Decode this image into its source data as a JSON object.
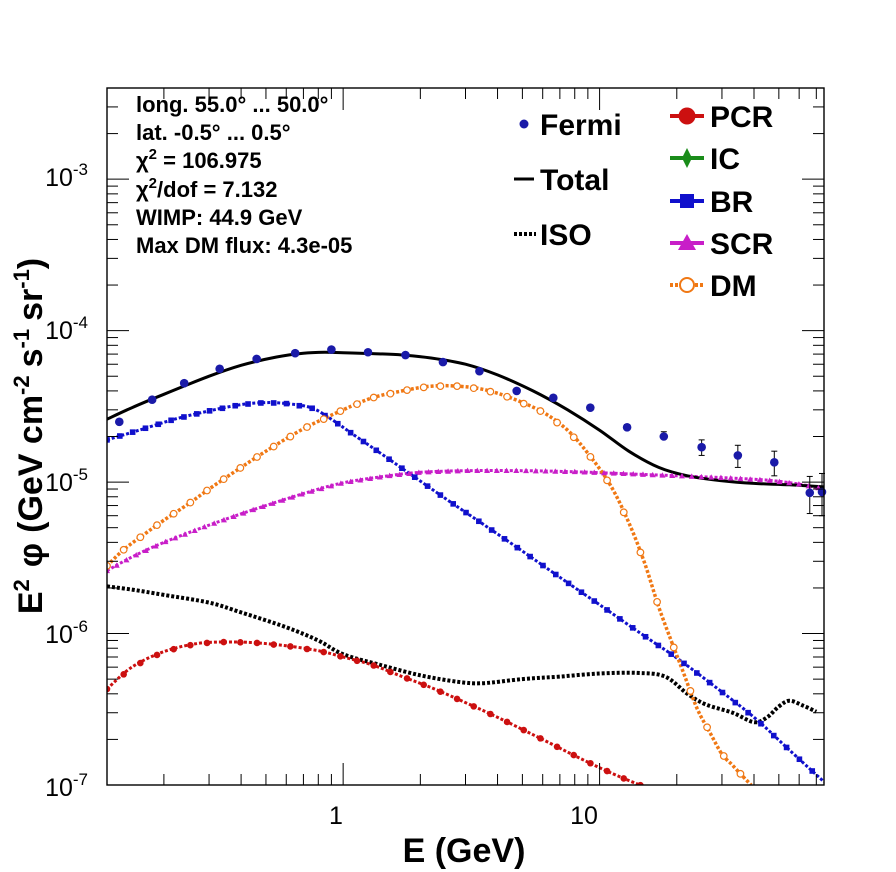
{
  "chart_data": {
    "type": "scatter",
    "title": "",
    "xlabel": "E (GeV)",
    "ylabel_parts": {
      "E": "E",
      "exp2": "2",
      "phi": "φ",
      "unit_open": "(GeV cm",
      "exp_cm": "-2",
      "s": "s",
      "exp_s": "-1",
      "sr": "sr",
      "exp_sr": "-1",
      "close": ")"
    },
    "x_scale": "log",
    "y_scale": "log",
    "xlim": [
      0.12,
      75
    ],
    "ylim": [
      1e-07,
      0.004
    ],
    "x_ticks": [
      {
        "value": 1,
        "label": "1"
      },
      {
        "value": 10,
        "label": "10"
      }
    ],
    "y_ticks": [
      {
        "value": 1e-07,
        "base": "10",
        "exp": "-7"
      },
      {
        "value": 1e-06,
        "base": "10",
        "exp": "-6"
      },
      {
        "value": 1e-05,
        "base": "10",
        "exp": "-5"
      },
      {
        "value": 0.0001,
        "base": "10",
        "exp": "-4"
      },
      {
        "value": 0.001,
        "base": "10",
        "exp": "-3"
      }
    ],
    "info": {
      "long": "long. 55.0° ... 50.0°",
      "lat": "lat. -0.5° ... 0.5°",
      "chi2_prefix": "χ",
      "chi2_exp": "2",
      "chi2_suffix": " = 106.975",
      "chi2dof_prefix": "χ",
      "chi2dof_exp": "2",
      "chi2dof_suffix": "/dof = 7.132",
      "wimp": "WIMP: 44.9 GeV",
      "maxdm": "Max DM flux: 4.3e-05"
    },
    "legend": {
      "fermi": "Fermi",
      "total": "Total",
      "iso": "ISO",
      "pcr": "PCR",
      "ic": "IC",
      "br": "BR",
      "scr": "SCR",
      "dm": "DM"
    },
    "colors": {
      "fermi": "#1a1aa8",
      "total": "#000000",
      "iso": "#000000",
      "pcr": "#cc1010",
      "ic": "#1a8c1a",
      "br": "#1010cc",
      "scr": "#c81ec8",
      "dm": "#f07814"
    },
    "fermi": {
      "x": [
        0.134,
        0.18,
        0.24,
        0.33,
        0.46,
        0.65,
        0.9,
        1.25,
        1.75,
        2.45,
        3.4,
        4.75,
        6.6,
        9.2,
        12.8,
        17.8,
        25,
        34.6,
        48,
        66,
        80
      ],
      "y": [
        2.5e-05,
        3.5e-05,
        4.5e-05,
        5.6e-05,
        6.5e-05,
        7.1e-05,
        7.5e-05,
        7.2e-05,
        6.9e-05,
        6.2e-05,
        5.4e-05,
        4e-05,
        3.6e-05,
        3.1e-05,
        2.3e-05,
        2e-05,
        1.7e-05,
        1.5e-05,
        1.35e-05,
        8.5e-06,
        8.6e-06
      ],
      "yerr_low": [
        0,
        0,
        0,
        0,
        0,
        0,
        0,
        0,
        0,
        0,
        0,
        0,
        0,
        0,
        0,
        0,
        2e-06,
        2.5e-06,
        2.5e-06,
        2.3e-06,
        2.6e-06
      ],
      "yerr_high": [
        0,
        0,
        0,
        0,
        0,
        0,
        0,
        0,
        0,
        0,
        0,
        0,
        0,
        0,
        1e-06,
        1.5e-06,
        2e-06,
        2.5e-06,
        2.5e-06,
        2.4e-06,
        2.8e-06
      ]
    },
    "total": {
      "x": [
        0.12,
        0.15,
        0.2,
        0.3,
        0.4,
        0.55,
        0.7,
        0.85,
        1.0,
        1.3,
        1.7,
        2.2,
        3.0,
        4.0,
        5.5,
        7.5,
        10,
        13,
        17,
        22,
        30,
        40,
        55,
        75
      ],
      "y": [
        2.6e-05,
        3.1e-05,
        3.8e-05,
        5e-05,
        5.9e-05,
        6.7e-05,
        7.1e-05,
        7.2e-05,
        7.15e-05,
        7.05e-05,
        6.9e-05,
        6.6e-05,
        6e-05,
        5.1e-05,
        4e-05,
        3e-05,
        2.2e-05,
        1.6e-05,
        1.25e-05,
        1.1e-05,
        1.02e-05,
        9.8e-06,
        9.6e-06,
        9.3e-06
      ]
    },
    "iso": {
      "x": [
        0.12,
        0.15,
        0.2,
        0.3,
        0.4,
        0.6,
        0.8,
        1.0,
        1.4,
        2.0,
        2.8,
        3.5,
        5.0,
        7.0,
        10,
        14,
        18,
        22,
        26,
        33,
        40,
        45,
        50,
        55,
        62,
        70
      ],
      "y": [
        2.05e-06,
        1.95e-06,
        1.8e-06,
        1.6e-06,
        1.38e-06,
        1.1e-06,
        9e-07,
        7.3e-07,
        6.2e-07,
        5.3e-07,
        4.8e-07,
        4.7e-07,
        5e-07,
        5.2e-07,
        5.45e-07,
        5.5e-07,
        5.2e-07,
        4e-07,
        3.4e-07,
        3e-07,
        2.6e-07,
        2.8e-07,
        3.3e-07,
        3.6e-07,
        3.35e-07,
        3.05e-07
      ]
    },
    "pcr": {
      "x": [
        0.12,
        0.15,
        0.2,
        0.27,
        0.35,
        0.45,
        0.6,
        0.8,
        1.0,
        1.3,
        1.7,
        2.2,
        3.0,
        4.0,
        5.5,
        7.5,
        10,
        12.5,
        15
      ],
      "y": [
        4.3e-07,
        6e-07,
        7.6e-07,
        8.6e-07,
        8.8e-07,
        8.7e-07,
        8.3e-07,
        7.7e-07,
        7e-07,
        6.2e-07,
        5.2e-07,
        4.4e-07,
        3.5e-07,
        2.8e-07,
        2.15e-07,
        1.65e-07,
        1.3e-07,
        1.1e-07,
        9.7e-08
      ]
    },
    "br": {
      "x": [
        0.12,
        0.16,
        0.22,
        0.3,
        0.4,
        0.5,
        0.6,
        0.75,
        0.9,
        1.1,
        1.4,
        1.8,
        2.5,
        3.5,
        5,
        7,
        10,
        15,
        20,
        28,
        40,
        55,
        75
      ],
      "y": [
        1.9e-05,
        2.2e-05,
        2.6e-05,
        2.95e-05,
        3.25e-05,
        3.35e-05,
        3.3e-05,
        3.1e-05,
        2.6e-05,
        2.05e-05,
        1.55e-05,
        1.15e-05,
        7.8e-06,
        5.3e-06,
        3.5e-06,
        2.35e-06,
        1.55e-06,
        9.6e-07,
        6.9e-07,
        4.5e-07,
        2.8e-07,
        1.7e-07,
        1.05e-07
      ]
    },
    "scr": {
      "x": [
        0.12,
        0.15,
        0.2,
        0.3,
        0.45,
        0.7,
        1.0,
        1.5,
        2.0,
        3.0,
        5.0,
        8.0,
        12,
        20,
        30,
        45,
        60,
        75
      ],
      "y": [
        2.6e-06,
        3.2e-06,
        4e-06,
        5.2e-06,
        6.6e-06,
        8.4e-06,
        9.9e-06,
        1.1e-05,
        1.16e-05,
        1.19e-05,
        1.19e-05,
        1.17e-05,
        1.14e-05,
        1.1e-05,
        1.07e-05,
        1.03e-05,
        9.7e-06,
        9e-06
      ]
    },
    "dm": {
      "x": [
        0.12,
        0.14,
        0.17,
        0.2,
        0.25,
        0.3,
        0.4,
        0.5,
        0.7,
        1.0,
        1.3,
        1.7,
        2.2,
        2.8,
        3.5,
        4.5,
        6.0,
        7.5,
        9.0,
        11,
        13,
        15,
        17,
        19,
        21,
        24,
        27,
        30,
        33,
        36,
        39
      ],
      "y": [
        2.8e-06,
        3.6e-06,
        4.6e-06,
        5.6e-06,
        7.2e-06,
        9e-06,
        1.25e-05,
        1.6e-05,
        2.25e-05,
        3e-05,
        3.6e-05,
        4e-05,
        4.3e-05,
        4.3e-05,
        4.1e-05,
        3.6e-05,
        2.9e-05,
        2.2e-05,
        1.55e-05,
        9.6e-06,
        5.4e-06,
        2.9e-06,
        1.5e-06,
        9e-07,
        5.8e-07,
        3.2e-07,
        2.2e-07,
        1.6e-07,
        1.35e-07,
        1.15e-07,
        1e-07
      ]
    }
  }
}
